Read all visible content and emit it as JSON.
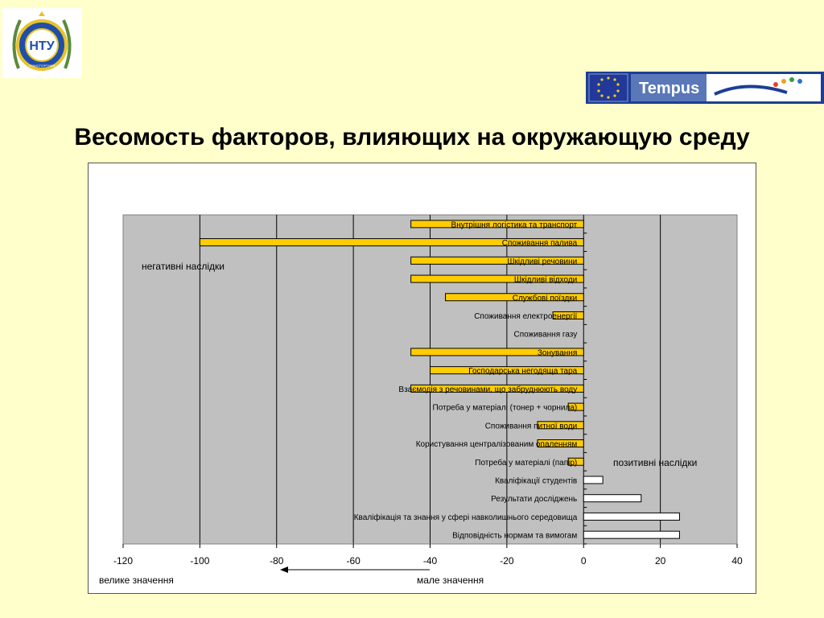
{
  "title": "Весомость факторов, влияющих на окружающую среду",
  "logos": {
    "left_text": "НТУ",
    "left_sub": "ТРАНСПОРТНИЙ",
    "right_text": "Tempus"
  },
  "colors": {
    "background": "#ffffcc",
    "plot_area": "#c0c0c0",
    "negative_bar": "#ffcc00",
    "positive_bar": "#ffffff",
    "tempus_banner": "#1c3f94"
  },
  "chart_data": {
    "type": "bar",
    "orientation": "horizontal",
    "categories": [
      "Внутрішня логістика та транспорт",
      "Споживання палива",
      "Шкідливі речовини",
      "Шкідливі відходи",
      "Службові поїздки",
      "Споживання електроенергії",
      "Споживання газу",
      "Зонування",
      "Господарська негодяща тара",
      "Взаємодія з речовинами, що забруднюють воду",
      "Потреба у матеріалі (тонер + чорнила)",
      "Споживання питної води",
      "Користування централізованим опаленням",
      "Потреба у матеріалі (папір)",
      "Кваліфікації студентів",
      "Результати досліджень",
      "Кваліфікація та знання у сфері навколишнього середовища",
      "Відповідність нормам та вимогам"
    ],
    "values": [
      -45,
      -100,
      -45,
      -45,
      -36,
      -8,
      0,
      -45,
      -40,
      -45,
      -4,
      -12,
      -12,
      -4,
      5,
      15,
      25,
      25
    ],
    "xlim": [
      -120,
      40
    ],
    "xticks": [
      -120,
      -100,
      -80,
      -60,
      -40,
      -20,
      0,
      20,
      40
    ],
    "grid": "vertical",
    "annotations": {
      "negative": "негативні наслідки",
      "positive": "позитивні наслідки",
      "left_axis_note": "велике значення",
      "right_axis_note": "мале значення"
    }
  }
}
